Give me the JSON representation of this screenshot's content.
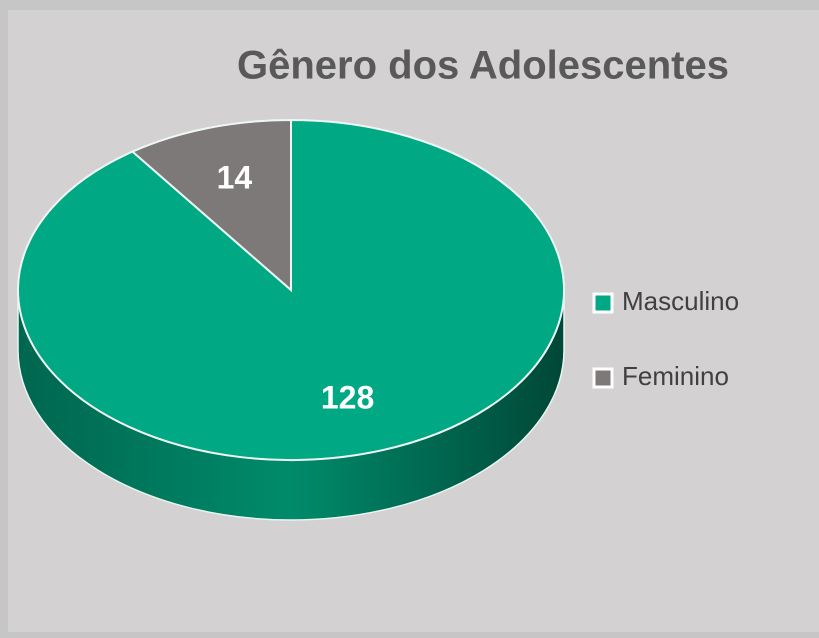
{
  "chart_data": {
    "type": "pie",
    "title": "Gênero dos Adolescentes",
    "categories": [
      "Masculino",
      "Feminino"
    ],
    "values": [
      128,
      14
    ],
    "colors": [
      "#00a883",
      "#7d7979"
    ],
    "legend": "right"
  }
}
